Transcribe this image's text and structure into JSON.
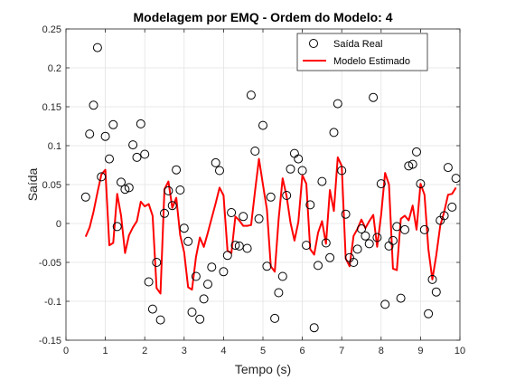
{
  "chart_data": {
    "type": "scatter",
    "title": "Modelagem por EMQ - Ordem do Modelo: 4",
    "xlabel": "Tempo (s)",
    "ylabel": "Saída",
    "xlim": [
      0,
      10
    ],
    "ylim": [
      -0.15,
      0.25
    ],
    "xticks": [
      0,
      1,
      2,
      3,
      4,
      5,
      6,
      7,
      8,
      9,
      10
    ],
    "yticks": [
      -0.15,
      -0.1,
      -0.05,
      0,
      0.05,
      0.1,
      0.15,
      0.2,
      0.25
    ],
    "xtick_labels": [
      "0",
      "1",
      "2",
      "3",
      "4",
      "5",
      "6",
      "7",
      "8",
      "9",
      "10"
    ],
    "ytick_labels": [
      "-0.15",
      "-0.1",
      "-0.05",
      "0",
      "0.05",
      "0.1",
      "0.15",
      "0.2",
      "0.25"
    ],
    "grid": true,
    "legend_position": "top-right",
    "series": [
      {
        "name": "Saída Real",
        "style": "markers",
        "color": "#000000",
        "x": [
          0.5,
          0.6,
          0.7,
          0.8,
          0.9,
          1.0,
          1.1,
          1.2,
          1.3,
          1.4,
          1.5,
          1.6,
          1.7,
          1.8,
          1.9,
          2.0,
          2.1,
          2.2,
          2.3,
          2.4,
          2.5,
          2.6,
          2.7,
          2.8,
          2.9,
          3.0,
          3.1,
          3.2,
          3.3,
          3.4,
          3.5,
          3.6,
          3.7,
          3.8,
          3.9,
          4.0,
          4.1,
          4.2,
          4.3,
          4.4,
          4.5,
          4.6,
          4.7,
          4.8,
          4.9,
          5.0,
          5.1,
          5.2,
          5.3,
          5.4,
          5.5,
          5.6,
          5.7,
          5.8,
          5.9,
          6.0,
          6.1,
          6.2,
          6.3,
          6.4,
          6.5,
          6.6,
          6.7,
          6.8,
          6.9,
          7.0,
          7.1,
          7.2,
          7.3,
          7.4,
          7.5,
          7.6,
          7.7,
          7.8,
          7.9,
          8.0,
          8.1,
          8.2,
          8.3,
          8.4,
          8.5,
          8.6,
          8.7,
          8.8,
          8.9,
          9.0,
          9.1,
          9.2,
          9.3,
          9.4,
          9.5,
          9.6,
          9.7,
          9.8,
          9.9
        ],
        "y": [
          0.034,
          0.115,
          0.152,
          0.226,
          0.06,
          0.112,
          0.083,
          0.127,
          -0.004,
          0.053,
          0.044,
          0.046,
          0.101,
          0.085,
          0.128,
          0.089,
          -0.075,
          -0.11,
          -0.05,
          -0.124,
          0.013,
          0.042,
          0.023,
          0.069,
          0.043,
          -0.006,
          -0.023,
          -0.114,
          -0.068,
          -0.123,
          -0.097,
          -0.078,
          -0.056,
          0.078,
          0.068,
          -0.062,
          -0.041,
          0.014,
          -0.028,
          -0.029,
          0.009,
          -0.032,
          0.165,
          0.093,
          0.006,
          0.126,
          -0.055,
          0.034,
          -0.122,
          -0.089,
          -0.068,
          0.036,
          0.07,
          0.09,
          0.083,
          0.068,
          -0.028,
          0.024,
          -0.134,
          -0.054,
          0.054,
          -0.025,
          -0.044,
          0.117,
          0.154,
          0.068,
          0.012,
          -0.044,
          -0.05,
          -0.033,
          -0.007,
          -0.016,
          -0.026,
          0.162,
          -0.018,
          0.051,
          -0.104,
          -0.029,
          -0.022,
          -0.004,
          -0.096,
          -0.008,
          0.074,
          0.076,
          0.092,
          0.051,
          -0.008,
          -0.116,
          -0.072,
          -0.088,
          0.004,
          0.01,
          0.072,
          0.021,
          0.058
        ]
      },
      {
        "name": "Modelo Estimado",
        "style": "line",
        "color": "#ff0000",
        "x": [
          0.5,
          0.6,
          0.7,
          0.8,
          0.9,
          1.0,
          1.1,
          1.2,
          1.3,
          1.4,
          1.5,
          1.6,
          1.7,
          1.8,
          1.9,
          2.0,
          2.1,
          2.2,
          2.3,
          2.4,
          2.5,
          2.6,
          2.7,
          2.8,
          2.9,
          3.0,
          3.1,
          3.2,
          3.3,
          3.4,
          3.5,
          3.6,
          3.7,
          3.8,
          3.9,
          4.0,
          4.1,
          4.2,
          4.3,
          4.4,
          4.5,
          4.6,
          4.7,
          4.8,
          4.9,
          5.0,
          5.1,
          5.2,
          5.3,
          5.4,
          5.5,
          5.6,
          5.7,
          5.8,
          5.9,
          6.0,
          6.1,
          6.2,
          6.3,
          6.4,
          6.5,
          6.6,
          6.7,
          6.8,
          6.9,
          7.0,
          7.1,
          7.2,
          7.3,
          7.4,
          7.5,
          7.6,
          7.7,
          7.8,
          7.9,
          8.0,
          8.1,
          8.2,
          8.3,
          8.4,
          8.5,
          8.6,
          8.7,
          8.8,
          8.9,
          9.0,
          9.1,
          9.2,
          9.3,
          9.4,
          9.5,
          9.6,
          9.7,
          9.8,
          9.9
        ],
        "y": [
          -0.017,
          -0.005,
          0.015,
          0.04,
          0.063,
          0.069,
          -0.028,
          -0.025,
          0.038,
          0.01,
          -0.038,
          -0.015,
          -0.005,
          0.003,
          0.028,
          0.022,
          0.025,
          0.01,
          -0.083,
          -0.09,
          0.044,
          0.054,
          0.02,
          0.033,
          -0.015,
          -0.037,
          -0.082,
          -0.085,
          -0.043,
          -0.018,
          -0.03,
          -0.012,
          0.007,
          0.026,
          0.046,
          0.036,
          -0.035,
          -0.038,
          0.009,
          0.004,
          -0.003,
          -0.003,
          -0.002,
          0.042,
          0.083,
          0.05,
          0.018,
          -0.055,
          -0.062,
          0.006,
          0.058,
          0.035,
          0.001,
          -0.022,
          0.002,
          0.062,
          0.051,
          -0.033,
          -0.04,
          -0.012,
          0.003,
          -0.026,
          0.043,
          0.016,
          0.085,
          0.074,
          -0.045,
          -0.055,
          -0.016,
          -0.007,
          0.005,
          -0.006,
          0.003,
          0.011,
          -0.03,
          0.011,
          0.065,
          0.05,
          -0.058,
          -0.06,
          0.006,
          0.01,
          0.004,
          0.023,
          -0.008,
          0.051,
          0.037,
          -0.033,
          -0.072,
          -0.041,
          -0.003,
          0.015,
          0.037,
          0.038,
          0.046
        ]
      }
    ]
  }
}
